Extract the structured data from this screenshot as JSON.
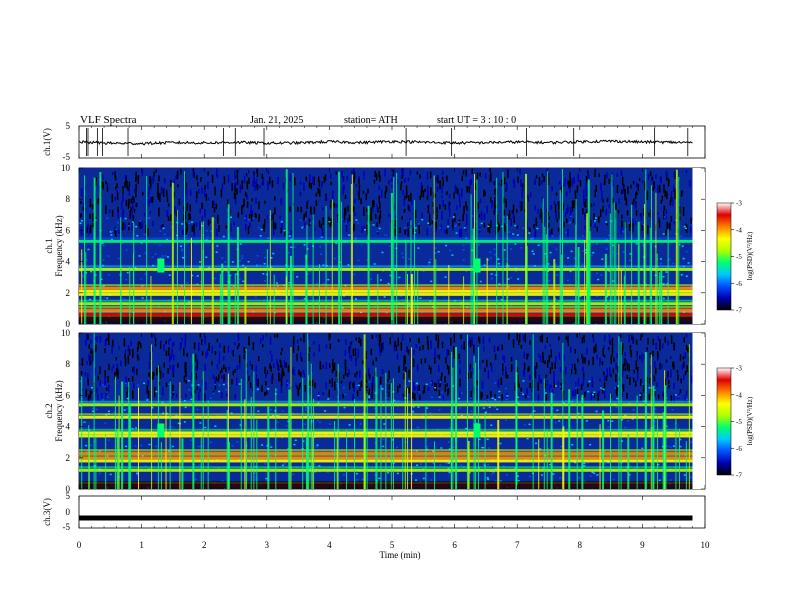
{
  "header": {
    "title": "VLF  Spectra",
    "date": "Jan.  21,  2025",
    "station": "station= ATH",
    "start": "start  UT  =    3  : 10 : 0"
  },
  "colors": {
    "spectrogram_background": "#0a2a9a",
    "colormap": [
      "#000000",
      "#0000b0",
      "#0050ff",
      "#00c8ff",
      "#00ff70",
      "#b0ff00",
      "#ffff00",
      "#ff8000",
      "#e00000",
      "#ffffff"
    ],
    "waveform": "#000000"
  },
  "chart_data": [
    {
      "type": "line",
      "panel": "ch1-waveform",
      "ylabel": "ch.1(V)",
      "ylim": [
        -5,
        5
      ],
      "yticks": [
        "5",
        "-5"
      ],
      "x": [
        0,
        0.5,
        1,
        1.5,
        2,
        2.5,
        3,
        3.5,
        4,
        4.5,
        5,
        5.5,
        6,
        6.5,
        7,
        7.5,
        8,
        8.5,
        9,
        9.5,
        9.8
      ],
      "values": [
        0,
        -0.4,
        -0.5,
        -0.2,
        -0.3,
        -0.1,
        -0.4,
        -0.3,
        0.1,
        -0.2,
        0.2,
        -0.1,
        -0.3,
        -0.2,
        0,
        -0.2,
        0.1,
        0.3,
        0,
        -0.1,
        -0.2
      ]
    },
    {
      "type": "heatmap",
      "panel": "ch1-spectrogram",
      "ylabel": "ch.1\nFrequency  (kHz)",
      "yticks": [
        "0",
        "2",
        "4",
        "6",
        "8",
        "10"
      ],
      "ylim": [
        0,
        10
      ],
      "xlim": [
        0,
        10
      ],
      "data_end_min": 9.8,
      "value_range_log_psd": [
        -7,
        -3
      ],
      "bands": [
        {
          "f_khz": 0.3,
          "level": -3.5
        },
        {
          "f_khz": 0.6,
          "level": -3.6
        },
        {
          "f_khz": 0.9,
          "level": -3.8
        },
        {
          "f_khz": 1.3,
          "level": -4.6
        },
        {
          "f_khz": 1.9,
          "level": -4.4
        },
        {
          "f_khz": 2.1,
          "level": -4.2
        },
        {
          "f_khz": 2.3,
          "level": -4.0
        },
        {
          "f_khz": 3.5,
          "level": -4.9
        },
        {
          "f_khz": 5.3,
          "level": -5.2
        }
      ],
      "bursts_min": [
        1.3,
        6.35
      ]
    },
    {
      "type": "heatmap",
      "panel": "ch2-spectrogram",
      "ylabel": "ch.2\nFrequency  (kHz)",
      "yticks": [
        "0",
        "2",
        "4",
        "6",
        "8",
        "10"
      ],
      "ylim": [
        0,
        10
      ],
      "xlim": [
        0,
        10
      ],
      "data_end_min": 9.8,
      "value_range_log_psd": [
        -7,
        -3
      ],
      "bands": [
        {
          "f_khz": 0.2,
          "level": -3.6
        },
        {
          "f_khz": 1.2,
          "level": -4.6
        },
        {
          "f_khz": 1.8,
          "level": -4.4
        },
        {
          "f_khz": 2.0,
          "level": -3.8
        },
        {
          "f_khz": 2.3,
          "level": -4.1
        },
        {
          "f_khz": 3.4,
          "level": -4.3
        },
        {
          "f_khz": 3.6,
          "level": -4.5
        },
        {
          "f_khz": 4.6,
          "level": -4.2
        },
        {
          "f_khz": 5.4,
          "level": -5.0
        }
      ],
      "bursts_min": [
        1.3,
        6.35
      ]
    },
    {
      "type": "line",
      "panel": "ch3-waveform",
      "ylabel": "ch.3(V)",
      "ylim": [
        -5,
        5
      ],
      "yticks": [
        "5",
        "0",
        "-5"
      ],
      "x": [
        0,
        9.8
      ],
      "values": [
        -2,
        -2
      ]
    }
  ],
  "xaxis": {
    "label": "Time  (min)",
    "ticks": [
      "0",
      "1",
      "2",
      "3",
      "4",
      "5",
      "6",
      "7",
      "8",
      "9",
      "10"
    ],
    "xlim": [
      0,
      10
    ]
  },
  "colorbars": [
    {
      "label": "log(PSD)(V²/Hz)",
      "ticks": [
        "-3",
        "-4",
        "-5",
        "-6",
        "-7"
      ]
    },
    {
      "label": "log(PSD)(V²/Hz)",
      "ticks": [
        "-3",
        "-4",
        "-5",
        "-6",
        "-7"
      ]
    }
  ]
}
